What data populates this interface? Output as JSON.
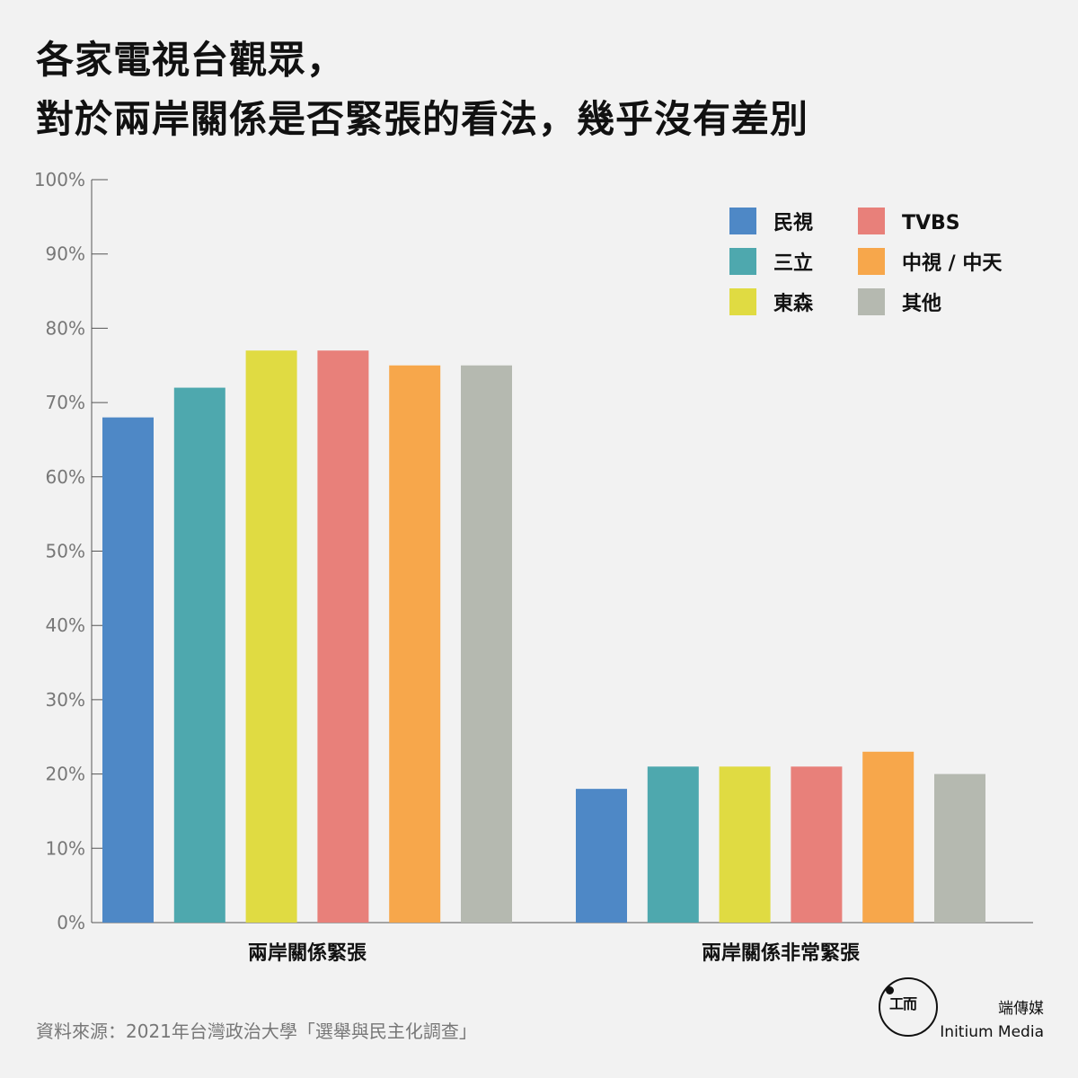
{
  "title": {
    "line1": "各家電視台觀眾，",
    "line2": "對於兩岸關係是否緊張的看法，幾乎沒有差別"
  },
  "source": "資料來源：2021年台灣政治大學「選舉與民主化調查」",
  "brand": {
    "name_zh": "端傳媒",
    "name_en": "Initium Media",
    "logo_icon": "initium-logo-icon"
  },
  "colors": {
    "民視": "#4e88c6",
    "三立": "#4ea8ae",
    "東森": "#e0db42",
    "TVBS": "#e8807a",
    "中視 / 中天": "#f7a74b",
    "其他": "#b5b9b0"
  },
  "chart_data": {
    "type": "bar",
    "categories": [
      "兩岸關係緊張",
      "兩岸關係非常緊張"
    ],
    "series": [
      {
        "name": "民視",
        "values": [
          68,
          18
        ]
      },
      {
        "name": "三立",
        "values": [
          72,
          21
        ]
      },
      {
        "name": "東森",
        "values": [
          77,
          21
        ]
      },
      {
        "name": "TVBS",
        "values": [
          77,
          21
        ]
      },
      {
        "name": "中視 / 中天",
        "values": [
          75,
          23
        ]
      },
      {
        "name": "其他",
        "values": [
          75,
          20
        ]
      }
    ],
    "yticks": [
      "0%",
      "10%",
      "20%",
      "30%",
      "40%",
      "50%",
      "60%",
      "70%",
      "80%",
      "90%",
      "100%"
    ],
    "ylim": [
      0,
      100
    ],
    "legend_position": "top-right",
    "grid": false
  }
}
